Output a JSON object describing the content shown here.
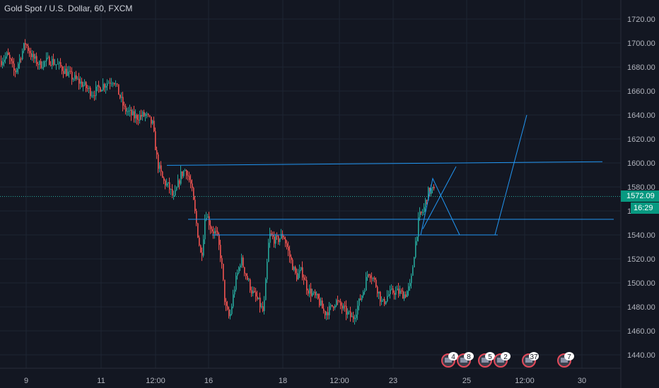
{
  "header": {
    "title": "Gold Spot / U.S. Dollar, 60, FXCM"
  },
  "current_price": {
    "value": 1572.09,
    "label": "1572.09",
    "countdown": "16:29"
  },
  "colors": {
    "background": "#131722",
    "grid": "#1e2433",
    "up": "#26a69a",
    "down": "#ef5350",
    "drawing": "#2196f3",
    "text": "#b2b5be",
    "price_line": "#26a69a",
    "badge_stroke": "#e5495a"
  },
  "events": [
    {
      "label": "4",
      "icon": "flag-icon"
    },
    {
      "label": "8",
      "icon": "flag-icon"
    },
    {
      "label": "5",
      "icon": "flag-icon"
    },
    {
      "label": "2",
      "icon": "flag-icon"
    },
    {
      "label": "37",
      "icon": "flag-icon"
    },
    {
      "label": "7",
      "icon": "flag-icon"
    }
  ],
  "chart_data": {
    "type": "candlestick",
    "title": "Gold Spot / U.S. Dollar, 60, FXCM",
    "ylim": [
      1430,
      1730
    ],
    "y_ticks": [
      1440,
      1460,
      1480,
      1500,
      1520,
      1540,
      1560,
      1580,
      1600,
      1620,
      1640,
      1660,
      1680,
      1700,
      1720
    ],
    "y_tick_labels": [
      "1440.00",
      "1460.00",
      "1480.00",
      "1500.00",
      "1520.00",
      "1540.00",
      "1560.00",
      "1580.00",
      "1600.00",
      "1620.00",
      "1640.00",
      "1660.00",
      "1680.00",
      "1700.00",
      "1720.00"
    ],
    "x_tick_labels": [
      "9",
      "11",
      "12:00",
      "16",
      "18",
      "12:00",
      "23",
      "25",
      "12:00",
      "30"
    ],
    "grid": true,
    "price_path": [
      [
        0,
        1685
      ],
      [
        10,
        1690
      ],
      [
        20,
        1675
      ],
      [
        35,
        1700
      ],
      [
        45,
        1688
      ],
      [
        55,
        1682
      ],
      [
        70,
        1686
      ],
      [
        85,
        1680
      ],
      [
        100,
        1672
      ],
      [
        115,
        1666
      ],
      [
        130,
        1658
      ],
      [
        145,
        1665
      ],
      [
        160,
        1670
      ],
      [
        175,
        1645
      ],
      [
        190,
        1638
      ],
      [
        205,
        1640
      ],
      [
        215,
        1632
      ],
      [
        222,
        1600
      ],
      [
        230,
        1585
      ],
      [
        238,
        1580
      ],
      [
        245,
        1570
      ],
      [
        255,
        1590
      ],
      [
        262,
        1595
      ],
      [
        270,
        1580
      ],
      [
        278,
        1545
      ],
      [
        284,
        1520
      ],
      [
        290,
        1560
      ],
      [
        298,
        1545
      ],
      [
        306,
        1540
      ],
      [
        312,
        1520
      ],
      [
        318,
        1480
      ],
      [
        324,
        1470
      ],
      [
        332,
        1500
      ],
      [
        340,
        1520
      ],
      [
        348,
        1505
      ],
      [
        356,
        1492
      ],
      [
        364,
        1485
      ],
      [
        372,
        1475
      ],
      [
        380,
        1540
      ],
      [
        390,
        1535
      ],
      [
        400,
        1540
      ],
      [
        410,
        1520
      ],
      [
        418,
        1505
      ],
      [
        426,
        1510
      ],
      [
        434,
        1495
      ],
      [
        442,
        1490
      ],
      [
        450,
        1485
      ],
      [
        458,
        1475
      ],
      [
        466,
        1478
      ],
      [
        474,
        1485
      ],
      [
        482,
        1480
      ],
      [
        490,
        1475
      ],
      [
        498,
        1470
      ],
      [
        506,
        1482
      ],
      [
        514,
        1495
      ],
      [
        520,
        1510
      ],
      [
        526,
        1505
      ],
      [
        532,
        1497
      ],
      [
        540,
        1482
      ],
      [
        548,
        1490
      ],
      [
        556,
        1493
      ],
      [
        564,
        1492
      ],
      [
        572,
        1490
      ],
      [
        580,
        1498
      ],
      [
        586,
        1530
      ],
      [
        592,
        1555
      ],
      [
        598,
        1560
      ],
      [
        604,
        1575
      ],
      [
        610,
        1578
      ],
      [
        614,
        1575
      ]
    ],
    "drawings": [
      {
        "type": "horizontal-line",
        "y": 1600
      },
      {
        "type": "horizontal-line",
        "y": 1553
      },
      {
        "type": "horizontal-line",
        "y": 1540
      },
      {
        "type": "projection-path",
        "points": [
          [
            595,
            1540
          ],
          [
            612,
            1587
          ],
          [
            650,
            1540
          ],
          [
            700,
            1540
          ],
          [
            745,
            1640
          ]
        ]
      },
      {
        "type": "projection-path",
        "points": [
          [
            598,
            1545
          ],
          [
            645,
            1597
          ]
        ]
      }
    ]
  }
}
